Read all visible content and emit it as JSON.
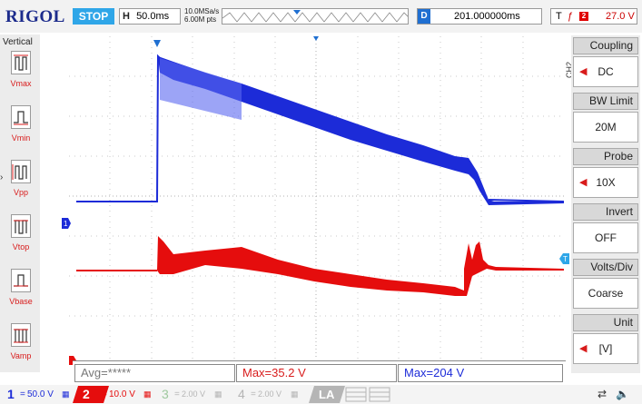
{
  "topbar": {
    "brand": "RIGOL",
    "run_state": "STOP",
    "timebase_label": "H",
    "timebase_value": "50.0ms",
    "sample_rate": "10.0MSa/s",
    "memory_depth": "6.00M pts",
    "delay_label": "D",
    "delay_value": "201.000000ms",
    "trigger_label": "T",
    "trigger_edge": "ñ",
    "trigger_channel": "2",
    "trigger_level": "27.0 V"
  },
  "left_panel": {
    "header": "Vertical",
    "measurements": [
      "Vmax",
      "Vmin",
      "Vpp",
      "Vtop",
      "Vbase",
      "Vamp"
    ]
  },
  "measure_bar": {
    "avg": "Avg=*****",
    "max_ch2": "Max=35.2 V",
    "max_ch1": "Max=204 V"
  },
  "right_menu": {
    "channel_tag": "CH2",
    "items": [
      {
        "label": "Coupling",
        "value": "DC"
      },
      {
        "label": "BW Limit",
        "value": "20M"
      },
      {
        "label": "Probe",
        "value": "10X"
      },
      {
        "label": "Invert",
        "value": "OFF"
      },
      {
        "label": "Volts/Div",
        "value": "Coarse"
      },
      {
        "label": "Unit",
        "value": "[V]"
      }
    ]
  },
  "bottom_bar": {
    "ch1_num": "1",
    "ch1_scale": "50.0 V",
    "ch2_num": "2",
    "ch2_scale": "10.0 V",
    "ch3_num": "3",
    "ch3_scale": "2.00 V",
    "ch4_num": "4",
    "ch4_scale": "2.00 V",
    "la_label": "LA"
  },
  "colors": {
    "ch1": "#1c2bd8",
    "ch2": "#e50d0d",
    "accent": "#2fa6e8"
  }
}
